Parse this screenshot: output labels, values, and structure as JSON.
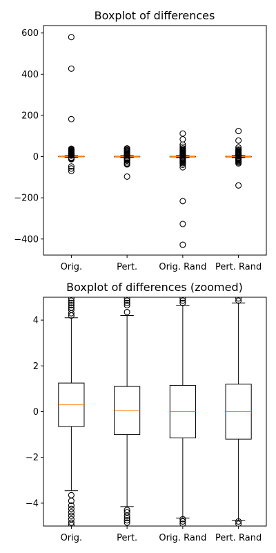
{
  "colors": {
    "box": "#000000",
    "median": "#ff7f0e",
    "flier": "#000000"
  },
  "chart_data": [
    {
      "type": "boxplot",
      "title": "Boxplot of differences",
      "categories": [
        "Orig.",
        "Pert.",
        "Orig. Rand",
        "Pert. Rand"
      ],
      "ylim": [
        -478,
        636
      ],
      "yticks": [
        {
          "value": 600,
          "label": "600"
        },
        {
          "value": 400,
          "label": "400"
        },
        {
          "value": 200,
          "label": "200"
        },
        {
          "value": 0,
          "label": "0"
        },
        {
          "value": -200,
          "label": "−200"
        },
        {
          "value": -400,
          "label": "−400"
        }
      ],
      "boxes": [
        {
          "q1": -0.6,
          "median": 0.3,
          "q3": 1.25,
          "whisker_low": -3.4,
          "whisker_high": 4.1,
          "fliers": [
            580,
            427,
            182,
            38,
            34,
            30,
            27,
            24,
            21,
            18,
            16,
            14,
            12,
            10,
            8,
            6,
            5,
            -5,
            -7,
            -9,
            -11,
            -13,
            -48,
            -58,
            -70
          ]
        },
        {
          "q1": -1.0,
          "median": 0.05,
          "q3": 1.1,
          "whisker_low": -4.1,
          "whisker_high": 4.2,
          "fliers": [
            40,
            36,
            31,
            27,
            23,
            19,
            15,
            11,
            8,
            6,
            5,
            -5,
            -7,
            -9,
            -12,
            -16,
            -20,
            -28,
            -34,
            -38,
            -97
          ]
        },
        {
          "q1": -1.15,
          "median": 0.0,
          "q3": 1.15,
          "whisker_low": -4.7,
          "whisker_high": 4.65,
          "fliers": [
            112,
            84,
            58,
            48,
            40,
            34,
            30,
            27,
            23,
            20,
            17,
            14,
            11,
            8,
            6,
            5,
            -5,
            -7,
            -9,
            -12,
            -15,
            -18,
            -22,
            -27,
            -32,
            -40,
            -52,
            -216,
            -327,
            -428
          ]
        },
        {
          "q1": -1.2,
          "median": 0.0,
          "q3": 1.2,
          "whisker_low": -4.8,
          "whisker_high": 4.75,
          "fliers": [
            124,
            78,
            44,
            35,
            30,
            26,
            23,
            20,
            17,
            14,
            11,
            9,
            7,
            5,
            -5,
            -7,
            -9,
            -12,
            -15,
            -19,
            -23,
            -28,
            -33,
            -140
          ]
        }
      ]
    },
    {
      "type": "boxplot",
      "title": "Boxplot of differences (zoomed)",
      "categories": [
        "Orig.",
        "Pert.",
        "Orig. Rand",
        "Pert. Rand"
      ],
      "ylim": [
        -5,
        5
      ],
      "yticks": [
        {
          "value": 4,
          "label": "4"
        },
        {
          "value": 2,
          "label": "2"
        },
        {
          "value": 0,
          "label": "0"
        },
        {
          "value": -2,
          "label": "−2"
        },
        {
          "value": -4,
          "label": "−4"
        }
      ],
      "boxes": [
        {
          "q1": -0.65,
          "median": 0.3,
          "q3": 1.25,
          "whisker_low": -3.45,
          "whisker_high": 4.1,
          "fliers": [
            4.2,
            4.3,
            4.45,
            4.55,
            4.65,
            4.75,
            4.85,
            4.95,
            -3.65,
            -3.9,
            -4.1,
            -4.25,
            -4.4,
            -4.55,
            -4.7,
            -4.85,
            -4.95
          ]
        },
        {
          "q1": -1.0,
          "median": 0.05,
          "q3": 1.1,
          "whisker_low": -4.15,
          "whisker_high": 4.2,
          "fliers": [
            4.35,
            4.65,
            4.75,
            4.85,
            4.95,
            -4.3,
            -4.4,
            -4.55,
            -4.65,
            -4.75,
            -4.85
          ]
        },
        {
          "q1": -1.15,
          "median": 0.0,
          "q3": 1.15,
          "whisker_low": -4.65,
          "whisker_high": 4.65,
          "fliers": [
            4.75,
            4.85,
            4.95,
            -4.7,
            -4.8,
            -4.9
          ]
        },
        {
          "q1": -1.2,
          "median": 0.0,
          "q3": 1.2,
          "whisker_low": -4.75,
          "whisker_high": 4.75,
          "fliers": [
            4.85,
            4.95,
            -4.8,
            -4.9
          ]
        }
      ]
    }
  ]
}
